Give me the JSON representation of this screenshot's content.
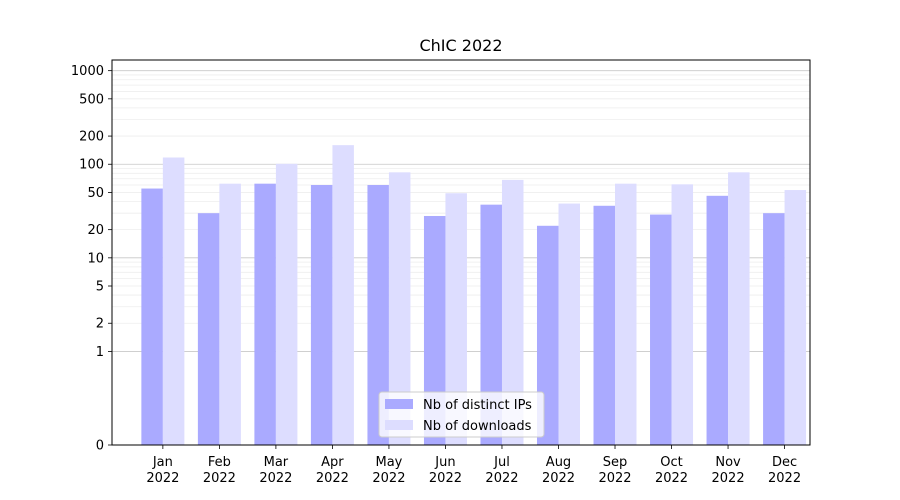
{
  "chart_data": {
    "type": "bar",
    "title": "ChIC 2022",
    "xlabel": "",
    "ylabel": "",
    "categories": [
      [
        "Jan",
        "2022"
      ],
      [
        "Feb",
        "2022"
      ],
      [
        "Mar",
        "2022"
      ],
      [
        "Apr",
        "2022"
      ],
      [
        "May",
        "2022"
      ],
      [
        "Jun",
        "2022"
      ],
      [
        "Jul",
        "2022"
      ],
      [
        "Aug",
        "2022"
      ],
      [
        "Sep",
        "2022"
      ],
      [
        "Oct",
        "2022"
      ],
      [
        "Nov",
        "2022"
      ],
      [
        "Dec",
        "2022"
      ]
    ],
    "series": [
      {
        "name": "Nb of distinct IPs",
        "color": "#aaaaff",
        "values": [
          55,
          30,
          62,
          60,
          60,
          28,
          37,
          22,
          36,
          29,
          46,
          30
        ]
      },
      {
        "name": "Nb of downloads",
        "color": "#ddddff",
        "values": [
          118,
          62,
          101,
          160,
          82,
          49,
          68,
          38,
          62,
          61,
          82,
          53
        ]
      }
    ],
    "y_scale": "symlog",
    "ylim": [
      0,
      1300
    ],
    "yticks": [
      0,
      1,
      2,
      5,
      10,
      20,
      50,
      100,
      200,
      500,
      1000
    ],
    "grid": true,
    "legend_position": "bottom-center"
  }
}
